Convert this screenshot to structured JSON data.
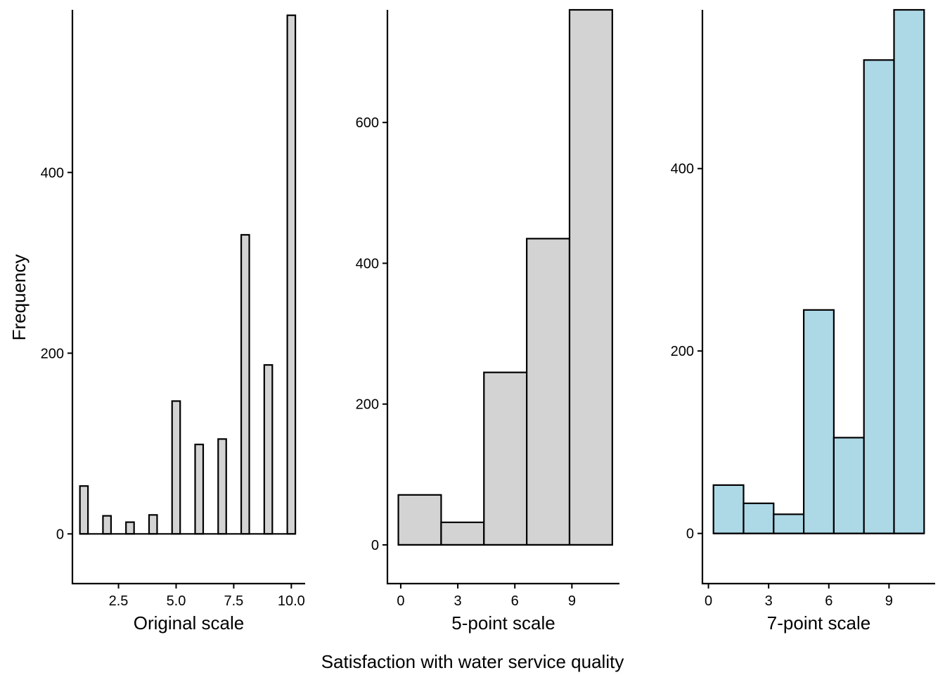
{
  "figure": {
    "ylabel": "Frequency",
    "xlabel": "Satisfaction with water service quality"
  },
  "chart_data": [
    {
      "type": "bar",
      "xlabel": "Original scale",
      "ylabel": "Frequency",
      "xlim": [
        0.5,
        10.6
      ],
      "ylim": [
        -55,
        580
      ],
      "xticks": [
        2.5,
        5.0,
        7.5,
        10.0
      ],
      "xtick_labels": [
        "2.5",
        "5.0",
        "7.5",
        "10.0"
      ],
      "yticks": [
        0,
        200,
        400
      ],
      "bin_width": 0.35,
      "x": [
        1,
        2,
        3,
        4,
        5,
        6,
        7,
        8,
        9,
        10
      ],
      "values": [
        53,
        20,
        13,
        21,
        147,
        99,
        105,
        331,
        187,
        574
      ],
      "fill": "#d3d3d3",
      "stroke": "#000000"
    },
    {
      "type": "bar",
      "xlabel": "5-point scale",
      "ylabel": "Frequency",
      "xlim": [
        -0.7,
        11.5
      ],
      "ylim": [
        -55,
        760
      ],
      "xticks": [
        0,
        3,
        6,
        9
      ],
      "xtick_labels": [
        "0",
        "3",
        "6",
        "9"
      ],
      "yticks": [
        0,
        200,
        400,
        600
      ],
      "bin_width": 2.25,
      "x": [
        1.0,
        3.25,
        5.5,
        7.75,
        10.0
      ],
      "values": [
        71,
        32,
        245,
        435,
        760
      ],
      "fill": "#d3d3d3",
      "stroke": "#000000"
    },
    {
      "type": "bar",
      "xlabel": "7-point scale",
      "ylabel": "Frequency",
      "xlim": [
        -0.3,
        11.3
      ],
      "ylim": [
        -55,
        574
      ],
      "xticks": [
        0,
        3,
        6,
        9
      ],
      "xtick_labels": [
        "0",
        "3",
        "6",
        "9"
      ],
      "yticks": [
        0,
        200,
        400
      ],
      "bin_width": 1.5,
      "x": [
        1.0,
        2.5,
        4.0,
        5.5,
        7.0,
        8.5,
        10.0
      ],
      "values": [
        53,
        33,
        21,
        245,
        105,
        519,
        574
      ],
      "fill": "#add8e6",
      "stroke": "#000000"
    }
  ]
}
